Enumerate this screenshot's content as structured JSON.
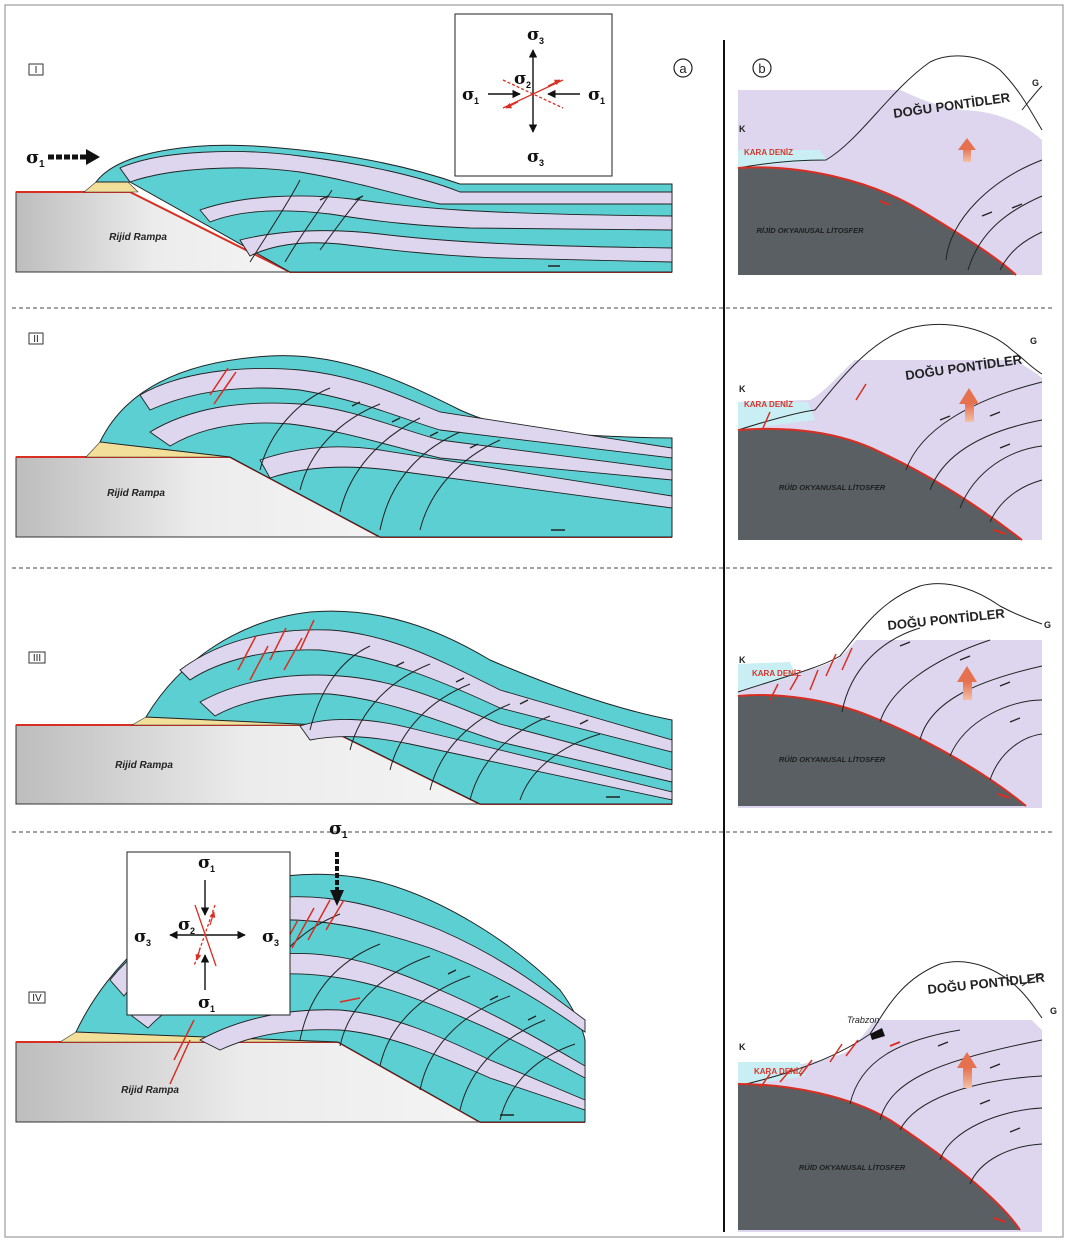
{
  "panels": {
    "a": "a",
    "b": "b"
  },
  "stages": [
    "I",
    "II",
    "III",
    "IV"
  ],
  "rampa_label": "Rijid Rampa",
  "stress_box_top": {
    "top": "σ",
    "top_sub": "3",
    "center": "σ",
    "center_sub": "2",
    "left": "σ",
    "left_sub": "1",
    "right": "σ",
    "right_sub": "1",
    "bottom": "σ",
    "bottom_sub": "3"
  },
  "stress_box_bottom": {
    "top": "σ",
    "top_sub": "1",
    "center": "σ",
    "center_sub": "2",
    "left": "σ",
    "left_sub": "3",
    "right": "σ",
    "right_sub": "3",
    "bottom": "σ",
    "bottom_sub": "1"
  },
  "sigma_arrow_stage1": {
    "label": "σ",
    "sub": "1"
  },
  "sigma_arrow_stage4": {
    "label": "σ",
    "sub": "1"
  },
  "section_b": {
    "north": "K",
    "south": "G",
    "sea": "KARA DENİZ",
    "mountains": "DOĞU PONTİDLER",
    "lithosphere_rows": [
      "RİJİD OKYANUSAL LİTOSFER",
      "RÜİD OKYANUSAL LİTOSFER",
      "RÜİD OKYANUSAL LİTOSFER",
      "RÜİD OKYANUSAL LİTOSFER"
    ],
    "city": "Trabzon"
  },
  "colors": {
    "teal": "#5ccfd3",
    "lavender": "#ddd6ee",
    "sand": "#f1df9a",
    "ramp_gray": "#d9d9d9",
    "litho_gray": "#5a5f63",
    "fault_red": "#d92e22",
    "sea_blue": "#c9eef4"
  }
}
